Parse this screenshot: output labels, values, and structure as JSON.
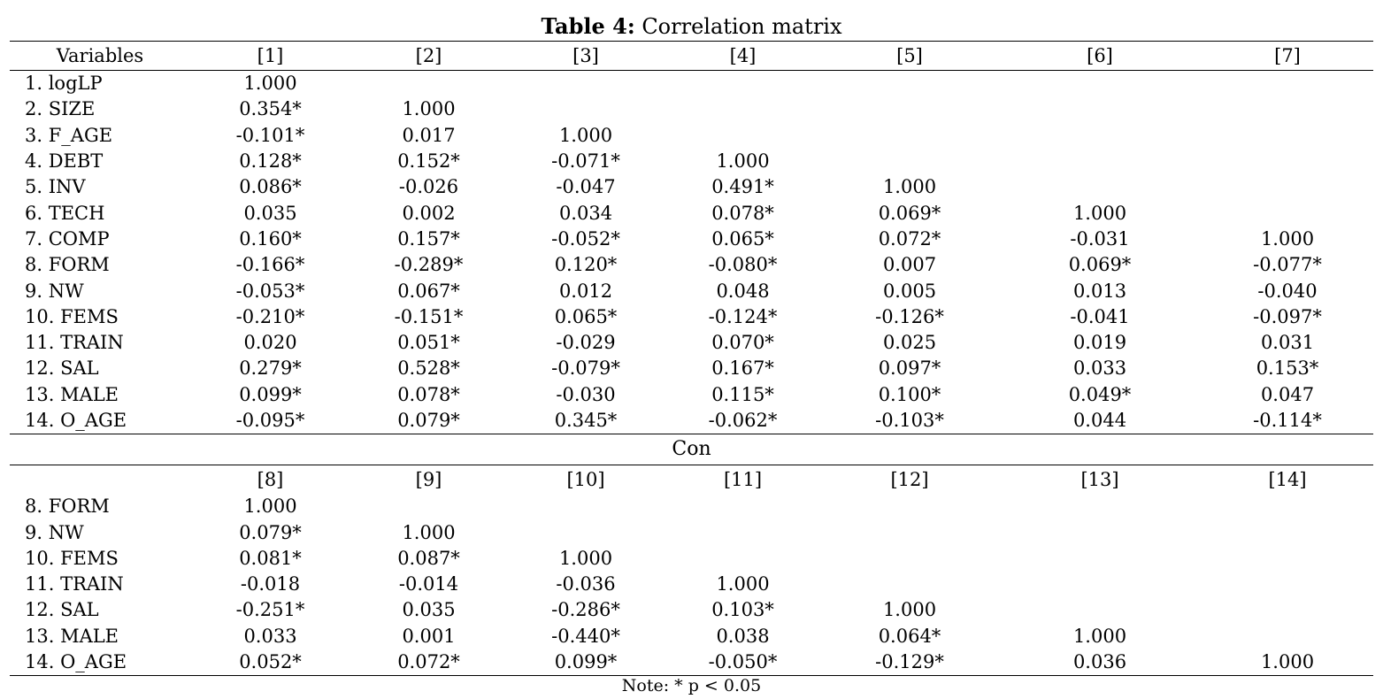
{
  "table": {
    "title_bold": "Table 4:",
    "title_rest": " Correlation matrix",
    "header1": [
      "Variables",
      "[1]",
      "[2]",
      "[3]",
      "[4]",
      "[5]",
      "[6]",
      "[7]"
    ],
    "rows1": [
      [
        "1. logLP",
        "1.000",
        "",
        "",
        "",
        "",
        "",
        ""
      ],
      [
        "2. SIZE",
        "0.354*",
        "1.000",
        "",
        "",
        "",
        "",
        ""
      ],
      [
        "3. F_AGE",
        "-0.101*",
        "0.017",
        "1.000",
        "",
        "",
        "",
        ""
      ],
      [
        "4. DEBT",
        "0.128*",
        "0.152*",
        "-0.071*",
        "1.000",
        "",
        "",
        ""
      ],
      [
        "5. INV",
        "0.086*",
        "-0.026",
        "-0.047",
        "0.491*",
        "1.000",
        "",
        ""
      ],
      [
        "6. TECH",
        "0.035",
        "0.002",
        "0.034",
        "0.078*",
        "0.069*",
        "1.000",
        ""
      ],
      [
        "7. COMP",
        "0.160*",
        "0.157*",
        "-0.052*",
        "0.065*",
        "0.072*",
        "-0.031",
        "1.000"
      ],
      [
        "8. FORM",
        "-0.166*",
        "-0.289*",
        "0.120*",
        "-0.080*",
        "0.007",
        "0.069*",
        "-0.077*"
      ],
      [
        "9. NW",
        "-0.053*",
        "0.067*",
        "0.012",
        "0.048",
        "0.005",
        "0.013",
        "-0.040"
      ],
      [
        "10. FEMS",
        "-0.210*",
        "-0.151*",
        "0.065*",
        "-0.124*",
        "-0.126*",
        "-0.041",
        "-0.097*"
      ],
      [
        "11. TRAIN",
        "0.020",
        "0.051*",
        "-0.029",
        "0.070*",
        "0.025",
        "0.019",
        "0.031"
      ],
      [
        "12. SAL",
        "0.279*",
        "0.528*",
        "-0.079*",
        "0.167*",
        "0.097*",
        "0.033",
        "0.153*"
      ],
      [
        "13. MALE",
        "0.099*",
        "0.078*",
        "-0.030",
        "0.115*",
        "0.100*",
        "0.049*",
        "0.047"
      ],
      [
        "14. O_AGE",
        "-0.095*",
        "0.079*",
        "0.345*",
        "-0.062*",
        "-0.103*",
        "0.044",
        "-0.114*"
      ]
    ],
    "con_label": "Con",
    "header2": [
      "",
      "[8]",
      "[9]",
      "[10]",
      "[11]",
      "[12]",
      "[13]",
      "[14]"
    ],
    "rows2": [
      [
        "8. FORM",
        "1.000",
        "",
        "",
        "",
        "",
        "",
        ""
      ],
      [
        "9. NW",
        "0.079*",
        "1.000",
        "",
        "",
        "",
        "",
        ""
      ],
      [
        "10. FEMS",
        "0.081*",
        "0.087*",
        "1.000",
        "",
        "",
        "",
        ""
      ],
      [
        "11. TRAIN",
        "-0.018",
        "-0.014",
        "-0.036",
        "1.000",
        "",
        "",
        ""
      ],
      [
        "12. SAL",
        "-0.251*",
        "0.035",
        "-0.286*",
        "0.103*",
        "1.000",
        "",
        ""
      ],
      [
        "13. MALE",
        "0.033",
        "0.001",
        "-0.440*",
        "0.038",
        "0.064*",
        "1.000",
        ""
      ],
      [
        "14. O_AGE",
        "0.052*",
        "0.072*",
        "0.099*",
        "-0.050*",
        "-0.129*",
        "0.036",
        "1.000"
      ]
    ],
    "note": "Note: * p < 0.05"
  }
}
